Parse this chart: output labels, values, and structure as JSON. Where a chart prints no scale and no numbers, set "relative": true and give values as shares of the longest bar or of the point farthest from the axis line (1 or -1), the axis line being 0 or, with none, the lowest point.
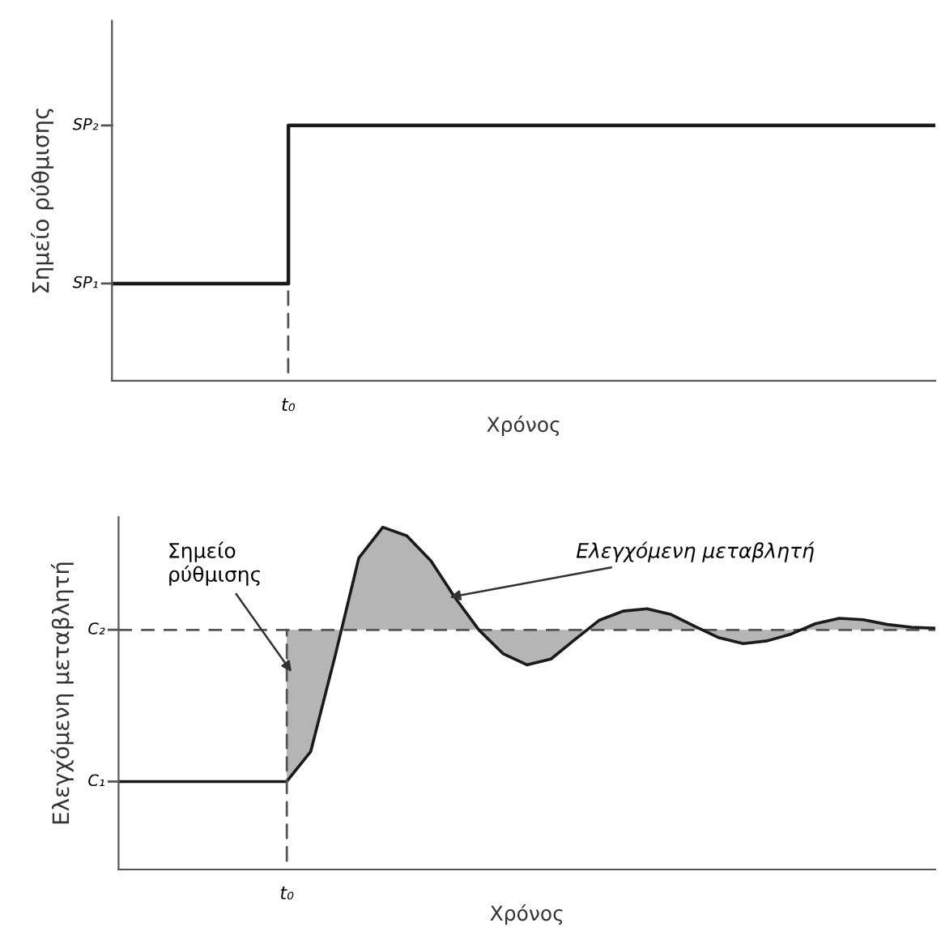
{
  "chart_data": [
    {
      "type": "step",
      "relative": true,
      "ylabel": "Σημείο ρύθμισης",
      "xlabel": "Χρόνος",
      "grid": false,
      "legend": false,
      "categories": [
        null,
        null,
        null,
        null,
        null,
        null,
        null,
        null,
        null,
        null,
        null,
        null,
        null,
        null,
        null
      ],
      "series": [
        {
          "color": "#1a1a1a",
          "values": [
            0.38,
            0.38,
            0.38,
            1,
            1,
            1,
            1,
            1,
            1,
            1,
            1,
            1,
            1,
            1,
            1
          ]
        }
      ],
      "annotations": [
        "SP₁",
        "SP₂",
        "t₀"
      ]
    },
    {
      "type": "line",
      "relative": true,
      "ylabel": "Ελεγχόμενη μεταβλητή",
      "xlabel": "Χρόνος",
      "grid": false,
      "legend": false,
      "categories": [
        null,
        null,
        null,
        null,
        null,
        null,
        null,
        null,
        null,
        null,
        null,
        null,
        null,
        null,
        null,
        null,
        null,
        null,
        null,
        null,
        null,
        null,
        null,
        null,
        null,
        null,
        null,
        null,
        null,
        null,
        null,
        null,
        null,
        null,
        null
      ],
      "series": [
        {
          "color": "#1a1a1a",
          "values": [
            0.257,
            0.257,
            0.257,
            0.257,
            0.257,
            0.257,
            0.257,
            0.257,
            0.345,
            0.62,
            0.91,
            1.0,
            0.975,
            0.902,
            0.795,
            0.7,
            0.631,
            0.598,
            0.615,
            0.672,
            0.728,
            0.755,
            0.762,
            0.745,
            0.71,
            0.677,
            0.66,
            0.668,
            0.688,
            0.718,
            0.734,
            0.73,
            0.716,
            0.708,
            0.705
          ]
        }
      ],
      "ref_lines": [
        {
          "axis": "y",
          "value": 0.7,
          "color": "#555555",
          "line_style": "dashed"
        }
      ],
      "annotations": [
        "C₁",
        "C₂",
        "t₀",
        "Σημείο\nρύθμισης",
        "Ελεγχόμενη μεταβλητή"
      ]
    }
  ]
}
